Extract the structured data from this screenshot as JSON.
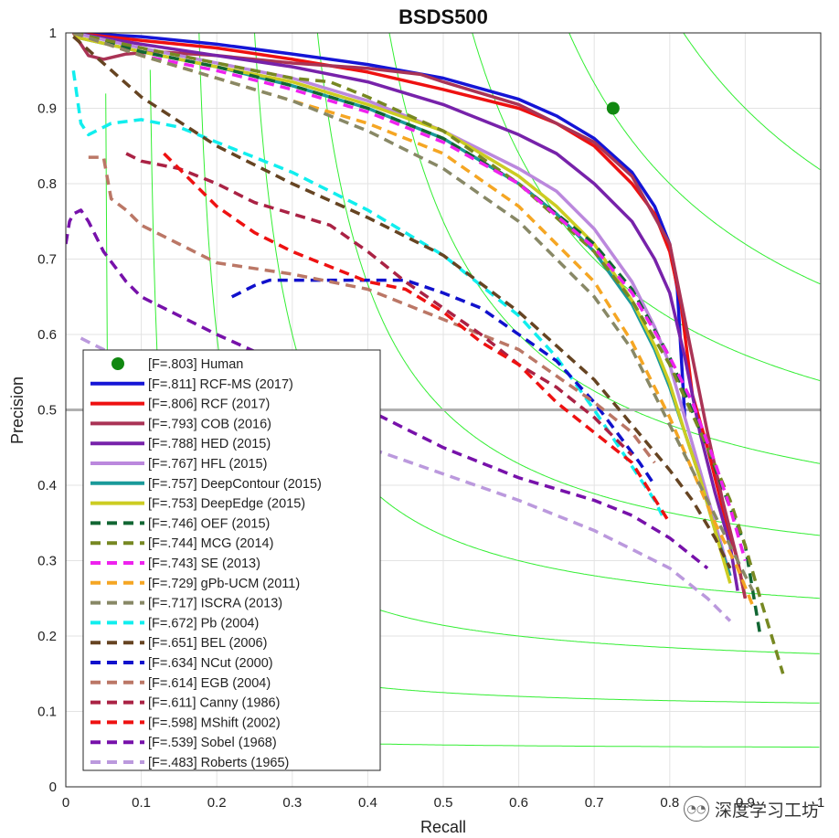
{
  "chart_data": {
    "type": "line",
    "title": "BSDS500",
    "xlabel": "Recall",
    "ylabel": "Precision",
    "xlim": [
      0,
      1
    ],
    "ylim": [
      0,
      1
    ],
    "xticks": [
      "0",
      "0.1",
      "0.2",
      "0.3",
      "0.4",
      "0.5",
      "0.6",
      "0.7",
      "0.8",
      "0.9",
      "1"
    ],
    "yticks": [
      "0",
      "0.1",
      "0.2",
      "0.3",
      "0.4",
      "0.5",
      "0.6",
      "0.7",
      "0.8",
      "0.9",
      "1"
    ],
    "grid": true,
    "legend_position": "bottom-left",
    "reference_line": {
      "y": 0.5,
      "color": "#b0b0b0"
    },
    "iso_f_values": [
      0.1,
      0.2,
      0.3,
      0.4,
      0.5,
      0.6,
      0.7,
      0.8,
      0.9
    ],
    "iso_f_color": "#33ee33",
    "human": {
      "label": "[F=.803] Human",
      "recall": 0.725,
      "precision": 0.9,
      "color": "#118811"
    },
    "series": [
      {
        "name": "[F=.811] RCF-MS (2017)",
        "color": "#1515d6",
        "dashed": false,
        "x": [
          0.01,
          0.1,
          0.2,
          0.3,
          0.4,
          0.5,
          0.6,
          0.65,
          0.7,
          0.75,
          0.78,
          0.8,
          0.81,
          0.82
        ],
        "y": [
          1.0,
          0.995,
          0.985,
          0.972,
          0.958,
          0.94,
          0.912,
          0.89,
          0.86,
          0.815,
          0.77,
          0.72,
          0.66,
          0.49
        ]
      },
      {
        "name": "[F=.806] RCF (2017)",
        "color": "#ee1111",
        "dashed": false,
        "x": [
          0.01,
          0.1,
          0.2,
          0.3,
          0.4,
          0.5,
          0.6,
          0.65,
          0.7,
          0.75,
          0.78,
          0.8,
          0.815,
          0.83,
          0.85,
          0.87,
          0.89,
          0.9
        ],
        "y": [
          1.0,
          0.99,
          0.98,
          0.965,
          0.948,
          0.925,
          0.9,
          0.88,
          0.85,
          0.8,
          0.76,
          0.71,
          0.64,
          0.52,
          0.45,
          0.37,
          0.3,
          0.25
        ]
      },
      {
        "name": "[F=.793] COB (2016)",
        "color": "#aa3355",
        "dashed": false,
        "x": [
          0.01,
          0.02,
          0.03,
          0.05,
          0.08,
          0.12,
          0.2,
          0.3,
          0.4,
          0.47,
          0.5,
          0.6,
          0.7,
          0.75,
          0.8,
          0.82,
          0.85,
          0.87,
          0.89,
          0.9
        ],
        "y": [
          1.0,
          0.985,
          0.97,
          0.965,
          0.972,
          0.975,
          0.97,
          0.96,
          0.953,
          0.945,
          0.935,
          0.905,
          0.855,
          0.81,
          0.72,
          0.62,
          0.47,
          0.38,
          0.3,
          0.25
        ]
      },
      {
        "name": "[F=.788] HED (2015)",
        "color": "#7722aa",
        "dashed": false,
        "x": [
          0.01,
          0.1,
          0.2,
          0.3,
          0.4,
          0.5,
          0.6,
          0.65,
          0.7,
          0.75,
          0.78,
          0.8,
          0.82,
          0.84,
          0.86,
          0.88,
          0.89
        ],
        "y": [
          1.0,
          0.985,
          0.97,
          0.955,
          0.935,
          0.905,
          0.865,
          0.84,
          0.8,
          0.75,
          0.7,
          0.655,
          0.57,
          0.47,
          0.39,
          0.32,
          0.26
        ]
      },
      {
        "name": "[F=.767] HFL (2015)",
        "color": "#bb88dd",
        "dashed": false,
        "x": [
          0.01,
          0.1,
          0.2,
          0.3,
          0.4,
          0.5,
          0.6,
          0.65,
          0.7,
          0.75,
          0.78,
          0.8,
          0.82,
          0.84,
          0.86,
          0.88
        ],
        "y": [
          1.0,
          0.98,
          0.96,
          0.94,
          0.91,
          0.87,
          0.82,
          0.79,
          0.74,
          0.67,
          0.61,
          0.56,
          0.49,
          0.42,
          0.35,
          0.28
        ]
      },
      {
        "name": "[F=.757] DeepContour (2015)",
        "color": "#1a9a9a",
        "dashed": false,
        "x": [
          0.01,
          0.1,
          0.2,
          0.3,
          0.4,
          0.5,
          0.6,
          0.65,
          0.7,
          0.75,
          0.78,
          0.8,
          0.82,
          0.84,
          0.86,
          0.88
        ],
        "y": [
          0.995,
          0.975,
          0.955,
          0.93,
          0.9,
          0.86,
          0.8,
          0.76,
          0.71,
          0.64,
          0.58,
          0.53,
          0.47,
          0.41,
          0.34,
          0.28
        ]
      },
      {
        "name": "[F=.753] DeepEdge (2015)",
        "color": "#cccc22",
        "dashed": false,
        "x": [
          0.01,
          0.1,
          0.2,
          0.3,
          0.4,
          0.5,
          0.6,
          0.65,
          0.7,
          0.75,
          0.78,
          0.8,
          0.82,
          0.84,
          0.86,
          0.88
        ],
        "y": [
          0.995,
          0.975,
          0.955,
          0.935,
          0.905,
          0.87,
          0.81,
          0.77,
          0.72,
          0.645,
          0.585,
          0.535,
          0.47,
          0.41,
          0.34,
          0.27
        ]
      },
      {
        "name": "[F=.746] OEF (2015)",
        "color": "#116633",
        "dashed": true,
        "x": [
          0.01,
          0.1,
          0.2,
          0.3,
          0.4,
          0.5,
          0.6,
          0.7,
          0.75,
          0.8,
          0.85,
          0.88,
          0.9,
          0.92
        ],
        "y": [
          1.0,
          0.975,
          0.955,
          0.93,
          0.9,
          0.86,
          0.8,
          0.72,
          0.66,
          0.57,
          0.45,
          0.37,
          0.32,
          0.2
        ]
      },
      {
        "name": "[F=.744] MCG (2014)",
        "color": "#778822",
        "dashed": true,
        "x": [
          0.01,
          0.1,
          0.2,
          0.3,
          0.35,
          0.4,
          0.5,
          0.6,
          0.7,
          0.75,
          0.8,
          0.85,
          0.88,
          0.9,
          0.92,
          0.95
        ],
        "y": [
          1.0,
          0.98,
          0.96,
          0.94,
          0.935,
          0.915,
          0.87,
          0.8,
          0.71,
          0.645,
          0.56,
          0.45,
          0.38,
          0.32,
          0.25,
          0.15
        ]
      },
      {
        "name": "[F=.743] SE (2013)",
        "color": "#ee22ee",
        "dashed": true,
        "x": [
          0.01,
          0.1,
          0.2,
          0.3,
          0.4,
          0.5,
          0.6,
          0.7,
          0.75,
          0.8,
          0.83,
          0.86,
          0.88,
          0.9
        ],
        "y": [
          1.0,
          0.97,
          0.95,
          0.925,
          0.895,
          0.855,
          0.8,
          0.715,
          0.655,
          0.57,
          0.51,
          0.43,
          0.37,
          0.3
        ]
      },
      {
        "name": "[F=.729] gPb-UCM (2011)",
        "color": "#f5a623",
        "dashed": true,
        "x": [
          0.01,
          0.1,
          0.2,
          0.3,
          0.4,
          0.5,
          0.6,
          0.7,
          0.75,
          0.8,
          0.83,
          0.86,
          0.89,
          0.91
        ],
        "y": [
          1.0,
          0.97,
          0.94,
          0.91,
          0.88,
          0.84,
          0.77,
          0.67,
          0.59,
          0.49,
          0.42,
          0.35,
          0.29,
          0.24
        ]
      },
      {
        "name": "[F=.717] ISCRA (2013)",
        "color": "#888866",
        "dashed": true,
        "x": [
          0.01,
          0.1,
          0.2,
          0.3,
          0.4,
          0.5,
          0.6,
          0.7,
          0.75,
          0.8,
          0.83,
          0.86,
          0.89,
          0.91
        ],
        "y": [
          1.0,
          0.97,
          0.94,
          0.91,
          0.87,
          0.82,
          0.75,
          0.65,
          0.58,
          0.48,
          0.42,
          0.36,
          0.3,
          0.26
        ]
      },
      {
        "name": "[F=.672] Pb (2004)",
        "color": "#11eeee",
        "dashed": true,
        "x": [
          0.01,
          0.02,
          0.03,
          0.06,
          0.1,
          0.15,
          0.2,
          0.3,
          0.4,
          0.5,
          0.6,
          0.65,
          0.7,
          0.74,
          0.76,
          0.78,
          0.79
        ],
        "y": [
          0.95,
          0.88,
          0.865,
          0.88,
          0.885,
          0.875,
          0.855,
          0.815,
          0.765,
          0.705,
          0.625,
          0.57,
          0.5,
          0.44,
          0.41,
          0.38,
          0.36
        ]
      },
      {
        "name": "[F=.651] BEL (2006)",
        "color": "#664422",
        "dashed": true,
        "x": [
          0.01,
          0.1,
          0.2,
          0.3,
          0.4,
          0.5,
          0.6,
          0.7,
          0.75,
          0.8,
          0.83,
          0.86,
          0.88
        ],
        "y": [
          0.995,
          0.915,
          0.85,
          0.8,
          0.755,
          0.705,
          0.63,
          0.54,
          0.48,
          0.42,
          0.38,
          0.33,
          0.29
        ]
      },
      {
        "name": "[F=.634] NCut (2000)",
        "color": "#1111cc",
        "dashed": true,
        "x": [
          0.22,
          0.25,
          0.27,
          0.3,
          0.35,
          0.4,
          0.45,
          0.5,
          0.55,
          0.6,
          0.65,
          0.7,
          0.73,
          0.76,
          0.78
        ],
        "y": [
          0.65,
          0.665,
          0.672,
          0.672,
          0.672,
          0.672,
          0.672,
          0.655,
          0.635,
          0.6,
          0.565,
          0.51,
          0.47,
          0.43,
          0.4
        ]
      },
      {
        "name": "[F=.614] EGB (2004)",
        "color": "#bb7766",
        "dashed": true,
        "x": [
          0.03,
          0.05,
          0.06,
          0.08,
          0.1,
          0.15,
          0.2,
          0.3,
          0.4,
          0.5,
          0.6,
          0.7,
          0.75,
          0.78
        ],
        "y": [
          0.835,
          0.835,
          0.78,
          0.765,
          0.745,
          0.72,
          0.695,
          0.68,
          0.66,
          0.62,
          0.58,
          0.51,
          0.47,
          0.43
        ]
      },
      {
        "name": "[F=.611] Canny (1986)",
        "color": "#aa2244",
        "dashed": true,
        "x": [
          0.08,
          0.1,
          0.15,
          0.2,
          0.25,
          0.3,
          0.35,
          0.4,
          0.45,
          0.5,
          0.55,
          0.6,
          0.65,
          0.7,
          0.75
        ],
        "y": [
          0.84,
          0.83,
          0.82,
          0.8,
          0.775,
          0.76,
          0.745,
          0.71,
          0.67,
          0.635,
          0.6,
          0.56,
          0.53,
          0.49,
          0.44
        ]
      },
      {
        "name": "[F=.598] MShift (2002)",
        "color": "#ee1111",
        "dashed": true,
        "x": [
          0.13,
          0.15,
          0.2,
          0.25,
          0.3,
          0.35,
          0.4,
          0.45,
          0.5,
          0.55,
          0.6,
          0.65,
          0.7,
          0.75,
          0.8
        ],
        "y": [
          0.84,
          0.82,
          0.77,
          0.735,
          0.71,
          0.69,
          0.67,
          0.66,
          0.63,
          0.59,
          0.56,
          0.51,
          0.47,
          0.43,
          0.35
        ]
      },
      {
        "name": "[F=.539] Sobel (1968)",
        "color": "#7711aa",
        "dashed": true,
        "x": [
          0.0,
          0.005,
          0.01,
          0.02,
          0.03,
          0.05,
          0.08,
          0.1,
          0.15,
          0.2,
          0.3,
          0.4,
          0.5,
          0.6,
          0.7,
          0.75,
          0.8,
          0.85
        ],
        "y": [
          0.72,
          0.75,
          0.76,
          0.765,
          0.75,
          0.71,
          0.67,
          0.65,
          0.625,
          0.6,
          0.555,
          0.5,
          0.45,
          0.41,
          0.38,
          0.36,
          0.33,
          0.29
        ]
      },
      {
        "name": "[F=.483] Roberts (1965)",
        "color": "#bb99dd",
        "dashed": true,
        "x": [
          0.02,
          0.05,
          0.1,
          0.2,
          0.3,
          0.4,
          0.5,
          0.6,
          0.7,
          0.8,
          0.85,
          0.88
        ],
        "y": [
          0.595,
          0.58,
          0.555,
          0.515,
          0.48,
          0.45,
          0.415,
          0.38,
          0.34,
          0.29,
          0.25,
          0.22
        ]
      }
    ]
  },
  "watermark": {
    "text": "深度学习工坊",
    "icon": "wechat-icon"
  }
}
